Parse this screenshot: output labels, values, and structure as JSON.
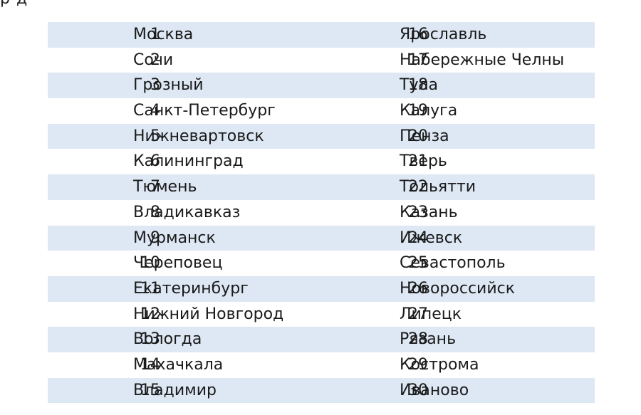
{
  "header_fragment": "р д",
  "rows": [
    {
      "n1": "1",
      "c1": "Москва",
      "n2": "16",
      "c2": "Ярославль"
    },
    {
      "n1": "2",
      "c1": "Сочи",
      "n2": "17",
      "c2": "Набережные Челны"
    },
    {
      "n1": "3",
      "c1": "Грозный",
      "n2": "18",
      "c2": "Тула"
    },
    {
      "n1": "4",
      "c1": "Санкт-Петербург",
      "n2": "19",
      "c2": "Калуга"
    },
    {
      "n1": "5",
      "c1": "Нижневартовск",
      "n2": "20",
      "c2": "Пенза"
    },
    {
      "n1": "6",
      "c1": "Калининград",
      "n2": "21",
      "c2": "Тверь"
    },
    {
      "n1": "7",
      "c1": "Тюмень",
      "n2": "22",
      "c2": "Тольятти"
    },
    {
      "n1": "8",
      "c1": "Владикавказ",
      "n2": "23",
      "c2": "Казань"
    },
    {
      "n1": "9",
      "c1": "Мурманск",
      "n2": "24",
      "c2": "Ижевск"
    },
    {
      "n1": "10",
      "c1": "Череповец",
      "n2": "25",
      "c2": "Севастополь"
    },
    {
      "n1": "11",
      "c1": "Екатеринбург",
      "n2": "26",
      "c2": "Новороссийск"
    },
    {
      "n1": "12",
      "c1": "Нижний Новгород",
      "n2": "27",
      "c2": "Липецк"
    },
    {
      "n1": "13",
      "c1": "Вологда",
      "n2": "28",
      "c2": "Рязань"
    },
    {
      "n1": "14",
      "c1": "Махачкала",
      "n2": "29",
      "c2": "Кострома"
    },
    {
      "n1": "15",
      "c1": "Владимир",
      "n2": "30",
      "c2": "Иваново"
    }
  ],
  "colors": {
    "row_shade": "#dde8f4",
    "text": "#1a1a1a"
  }
}
